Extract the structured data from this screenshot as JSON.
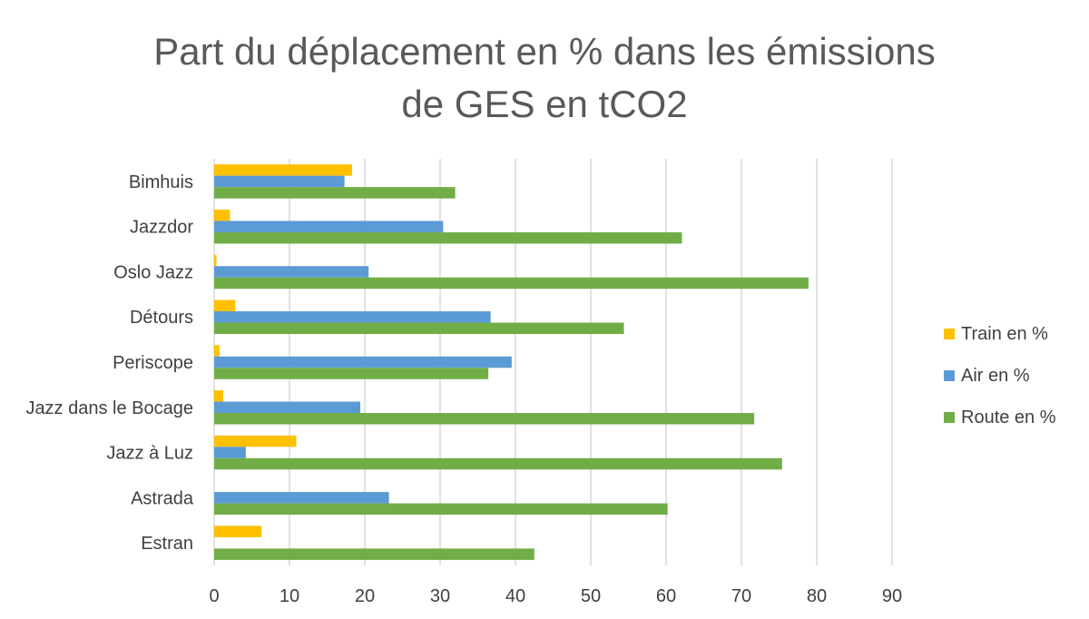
{
  "chart_data": {
    "type": "bar",
    "orientation": "horizontal",
    "title_lines": [
      "Part du déplacement en % dans les émissions",
      "de GES en tCO2"
    ],
    "categories": [
      "Bimhuis",
      "Jazzdor",
      "Oslo Jazz",
      "Détours",
      "Periscope",
      "Jazz dans le Bocage",
      "Jazz à Luz",
      "Astrada",
      "Estran"
    ],
    "series": [
      {
        "name": "Train en %",
        "color": "#FFC000",
        "values": [
          18.3,
          2.1,
          0.3,
          2.8,
          0.7,
          1.2,
          10.9,
          0,
          6.3
        ]
      },
      {
        "name": "Air en %",
        "color": "#5B9BD5",
        "values": [
          17.3,
          30.4,
          20.5,
          36.7,
          39.5,
          19.4,
          4.2,
          23.2,
          0
        ]
      },
      {
        "name": "Route en %",
        "color": "#70AD47",
        "values": [
          32.0,
          62.1,
          78.9,
          54.4,
          36.4,
          71.7,
          75.4,
          60.2,
          42.5
        ]
      }
    ],
    "xlim": [
      0,
      90
    ],
    "x_ticks": [
      "0",
      "10",
      "20",
      "30",
      "40",
      "50",
      "60",
      "70",
      "80",
      "90"
    ],
    "grid": true,
    "legend_position": "right"
  }
}
